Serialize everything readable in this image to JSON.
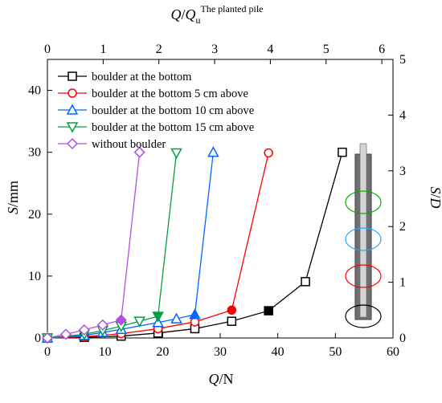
{
  "chart_data": {
    "type": "line",
    "xlabel_q": "Q",
    "xlabel_unit": "/N",
    "ylabel_s": "S",
    "ylabel_unit": "/mm",
    "y2label_s": "S",
    "y2label_slash": "/",
    "y2label_d": "D",
    "x2label_q": "Q",
    "x2label_slash": "/",
    "x2label_qu": "Q",
    "x2label_u": "u",
    "x2label_sup": "The planted pile",
    "xlim": [
      0,
      60
    ],
    "ylim": [
      0,
      45
    ],
    "x2lim": [
      0,
      6.2
    ],
    "y2lim": [
      0,
      5
    ],
    "xticks": [
      0,
      10,
      20,
      30,
      40,
      50,
      60
    ],
    "yticks": [
      0,
      10,
      20,
      30,
      40
    ],
    "x2ticks": [
      0,
      1,
      2,
      3,
      4,
      5,
      6
    ],
    "y2ticks": [
      0,
      1,
      2,
      3,
      4,
      5
    ],
    "legend_position": "top-left",
    "series": [
      {
        "name": "boulder at the bottom",
        "color": "#000000",
        "marker": "square",
        "x": [
          0,
          6.4,
          12.8,
          19.2,
          25.6,
          32,
          38.4,
          44.8,
          51.2
        ],
        "y": [
          0,
          0.1,
          0.3,
          0.8,
          1.5,
          2.7,
          4.4,
          9.1,
          30
        ],
        "filled_index": 6
      },
      {
        "name": "boulder at the bottom 5 cm above",
        "color": "#ff0000",
        "marker": "circle",
        "x": [
          0,
          6.4,
          12.8,
          19.2,
          25.6,
          32,
          38.4
        ],
        "y": [
          0,
          0.2,
          0.7,
          1.5,
          2.6,
          4.5,
          29.9
        ],
        "filled_index": 5
      },
      {
        "name": "boulder at the bottom 10 cm above",
        "color": "#0066ff",
        "marker": "triangle-up",
        "x": [
          0,
          6.4,
          9.6,
          12.8,
          19.2,
          22.4,
          25.6,
          28.8
        ],
        "y": [
          0,
          0.4,
          0.9,
          1.4,
          2.5,
          3.1,
          3.8,
          30
        ],
        "filled_index": 6
      },
      {
        "name": "boulder at the bottom 15 cm above",
        "color": "#00a040",
        "marker": "triangle-down",
        "x": [
          0,
          6.4,
          9.6,
          12.8,
          16,
          19.2,
          22.4
        ],
        "y": [
          0,
          0.6,
          1.2,
          1.9,
          2.7,
          3.5,
          29.9
        ],
        "filled_index": 5
      },
      {
        "name": "without boulder",
        "color": "#b050e0",
        "marker": "diamond",
        "x": [
          0,
          3.2,
          6.4,
          9.6,
          12.8,
          16
        ],
        "y": [
          0,
          0.6,
          1.3,
          2.1,
          2.9,
          30
        ],
        "filled_index": 4
      }
    ],
    "inset_pile": {
      "shaft_color": "#6e6e74",
      "core_color": "#d4d4d4",
      "boulder_rings": [
        {
          "color": "#00b000"
        },
        {
          "color": "#20aaff"
        },
        {
          "color": "#ff0000"
        },
        {
          "color": "#000000"
        }
      ]
    }
  }
}
